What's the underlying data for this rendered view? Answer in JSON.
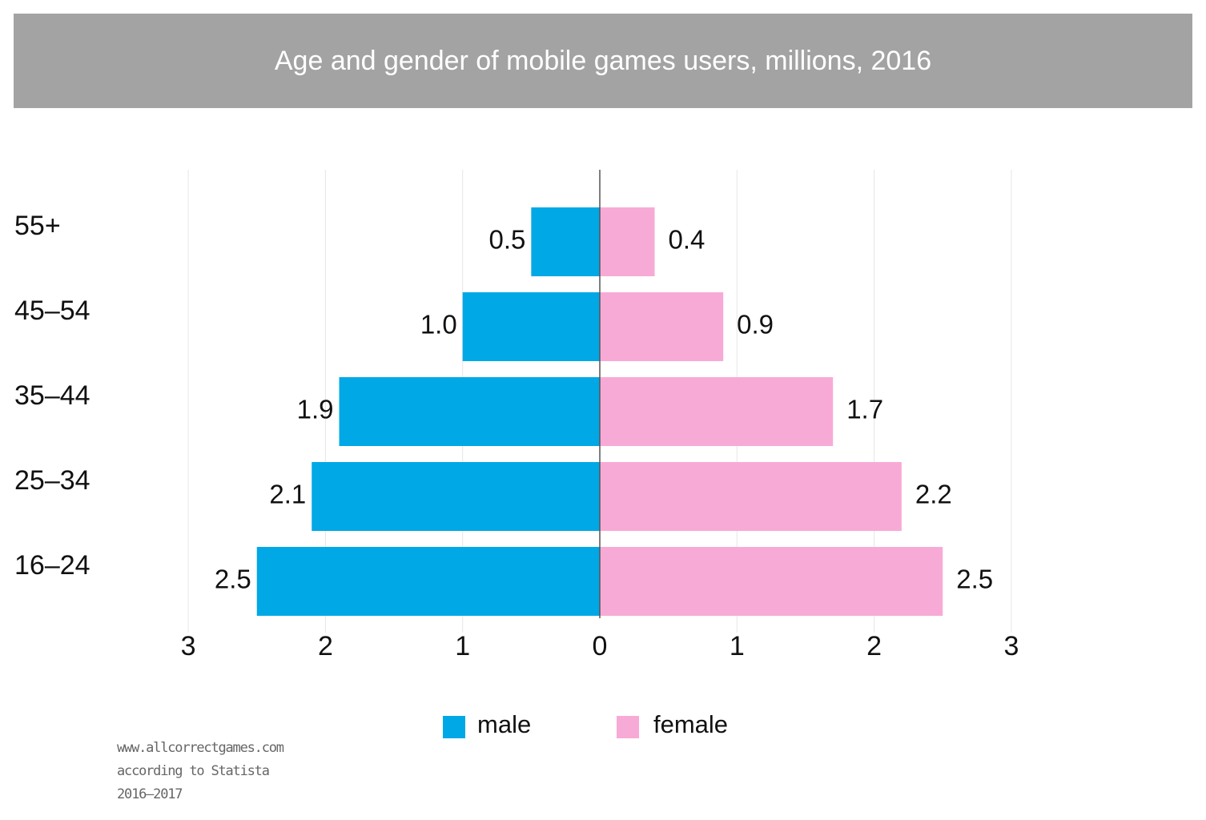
{
  "colors": {
    "male": "#00a8e6",
    "female": "#f8aad6",
    "title_bg": "#a3a3a3",
    "axis": "#555555",
    "grid": "#e6e6e6"
  },
  "chart_data": {
    "type": "bar",
    "orientation": "horizontal-diverging",
    "title": "Age and gender of mobile games users, millions, 2016",
    "categories": [
      "55+",
      "45–54",
      "35–44",
      "25–34",
      "16–24"
    ],
    "series": [
      {
        "name": "male",
        "values": [
          0.5,
          1.0,
          1.9,
          2.1,
          2.5
        ],
        "labels": [
          "0.5",
          "1.0",
          "1.9",
          "2.1",
          "2.5"
        ]
      },
      {
        "name": "female",
        "values": [
          0.4,
          0.9,
          1.7,
          2.2,
          2.5
        ],
        "labels": [
          "0.4",
          "0.9",
          "1.7",
          "2.2",
          "2.5"
        ]
      }
    ],
    "xlim": [
      -3,
      3
    ],
    "xticks": [
      -3,
      -2,
      -1,
      0,
      1,
      2,
      3
    ],
    "xtick_labels": [
      "3",
      "2",
      "1",
      "0",
      "1",
      "2",
      "3"
    ],
    "grid": true,
    "legend_position": "bottom"
  },
  "legend": {
    "male_label": "male",
    "female_label": "female"
  },
  "source": {
    "line1": "www.allcorrectgames.com",
    "line2": "according to Statista",
    "line3": "2016–2017"
  }
}
